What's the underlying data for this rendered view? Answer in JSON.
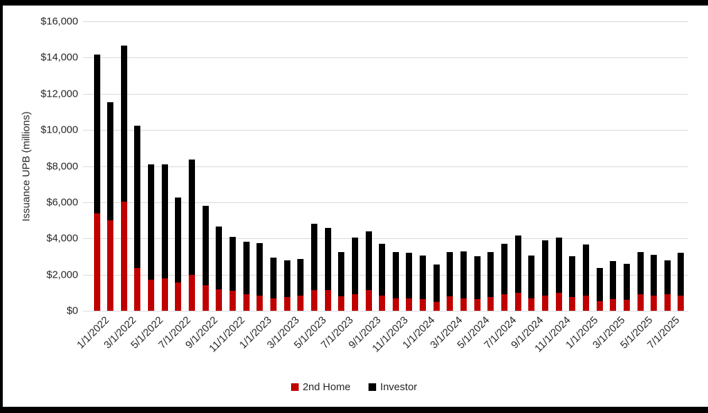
{
  "chart_data": {
    "type": "bar",
    "stacked": true,
    "title": "",
    "xlabel": "",
    "ylabel": "Issuance UPB (millions)",
    "ylim": [
      0,
      16000
    ],
    "ytick_interval": 2000,
    "ytick_labels": [
      "$16,000",
      "$14,000",
      "$12,000",
      "$10,000",
      "$8,000",
      "$6,000",
      "$4,000",
      "$2,000",
      "$0"
    ],
    "grid": true,
    "gridline_color": "#d9d9d9",
    "legend_position": "bottom",
    "categories": [
      "1/1/2022",
      "2/1/2022",
      "3/1/2022",
      "4/1/2022",
      "5/1/2022",
      "6/1/2022",
      "7/1/2022",
      "8/1/2022",
      "9/1/2022",
      "10/1/2022",
      "11/1/2022",
      "12/1/2022",
      "1/1/2023",
      "2/1/2023",
      "3/1/2023",
      "4/1/2023",
      "5/1/2023",
      "6/1/2023",
      "7/1/2023",
      "8/1/2023",
      "9/1/2023",
      "10/1/2023",
      "11/1/2023",
      "12/1/2023",
      "1/1/2024",
      "2/1/2024",
      "3/1/2024",
      "4/1/2024",
      "5/1/2024",
      "6/1/2024",
      "7/1/2024",
      "8/1/2024",
      "9/1/2024",
      "10/1/2024",
      "11/1/2024",
      "12/1/2024",
      "1/1/2025",
      "2/1/2025",
      "3/1/2025",
      "4/1/2025",
      "5/1/2025",
      "6/1/2025",
      "7/1/2025",
      "8/1/2025"
    ],
    "xtick_every": 2,
    "series": [
      {
        "name": "2nd Home",
        "color": "#c00000",
        "values": [
          5400,
          5000,
          6050,
          2350,
          1700,
          1800,
          1550,
          2000,
          1400,
          1200,
          1100,
          900,
          850,
          700,
          750,
          850,
          1150,
          1150,
          800,
          900,
          1150,
          850,
          700,
          700,
          650,
          500,
          800,
          700,
          650,
          750,
          900,
          1000,
          700,
          850,
          1000,
          750,
          850,
          550,
          650,
          600,
          900,
          850,
          900,
          850
        ]
      },
      {
        "name": "Investor",
        "color": "#000000",
        "values": [
          8750,
          6550,
          8600,
          7900,
          6400,
          6300,
          4700,
          6350,
          4400,
          3450,
          3000,
          2900,
          2900,
          2250,
          2050,
          2000,
          3650,
          3450,
          2450,
          3150,
          3250,
          2850,
          2550,
          2500,
          2400,
          2050,
          2450,
          2600,
          2350,
          2500,
          2800,
          3150,
          2350,
          3050,
          3050,
          2250,
          2800,
          1800,
          2100,
          2000,
          2350,
          2250,
          1900,
          2350
        ]
      }
    ]
  },
  "legend": {
    "items": [
      {
        "label": "2nd Home",
        "color": "#c00000"
      },
      {
        "label": "Investor",
        "color": "#000000"
      }
    ]
  }
}
